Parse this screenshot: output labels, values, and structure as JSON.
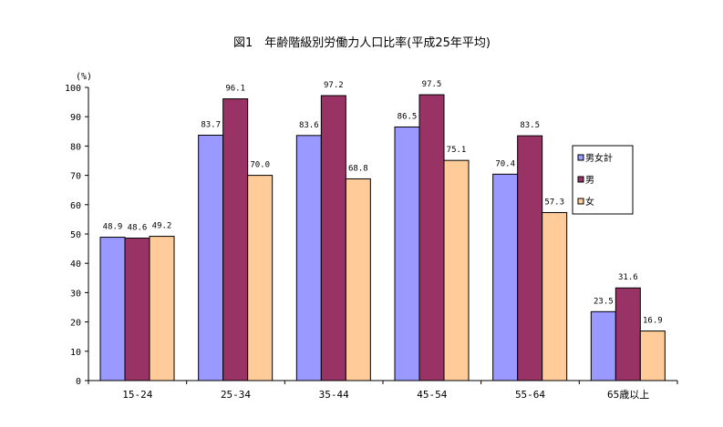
{
  "chart_data": {
    "type": "bar",
    "title": "図1　年齢階級別労働力人口比率(平成25年平均)",
    "ylabel": "(%)",
    "xlabel": "",
    "ylim": [
      0,
      100
    ],
    "yticks": [
      0,
      10,
      20,
      30,
      40,
      50,
      60,
      70,
      80,
      90,
      100
    ],
    "grid": false,
    "legend_position": "right",
    "categories": [
      "15-24",
      "25-34",
      "35-44",
      "45-54",
      "55-64",
      "65歳以上"
    ],
    "series": [
      {
        "name": "男女計",
        "color": "#9999ff",
        "values": [
          48.9,
          83.7,
          83.6,
          86.5,
          70.4,
          23.5
        ],
        "labels": [
          "48.9",
          "83.7",
          "83.6",
          "86.5",
          "70.4",
          "23.5"
        ]
      },
      {
        "name": "男",
        "color": "#993366",
        "values": [
          48.6,
          96.1,
          97.2,
          97.5,
          83.5,
          31.6
        ],
        "labels": [
          "48.6",
          "96.1",
          "97.2",
          "97.5",
          "83.5",
          "31.6"
        ]
      },
      {
        "name": "女",
        "color": "#ffcc99",
        "values": [
          49.2,
          70.0,
          68.8,
          75.1,
          57.3,
          16.9
        ],
        "labels": [
          "49.2",
          "70.0",
          "68.8",
          "75.1",
          "57.3",
          "16.9"
        ]
      }
    ]
  }
}
